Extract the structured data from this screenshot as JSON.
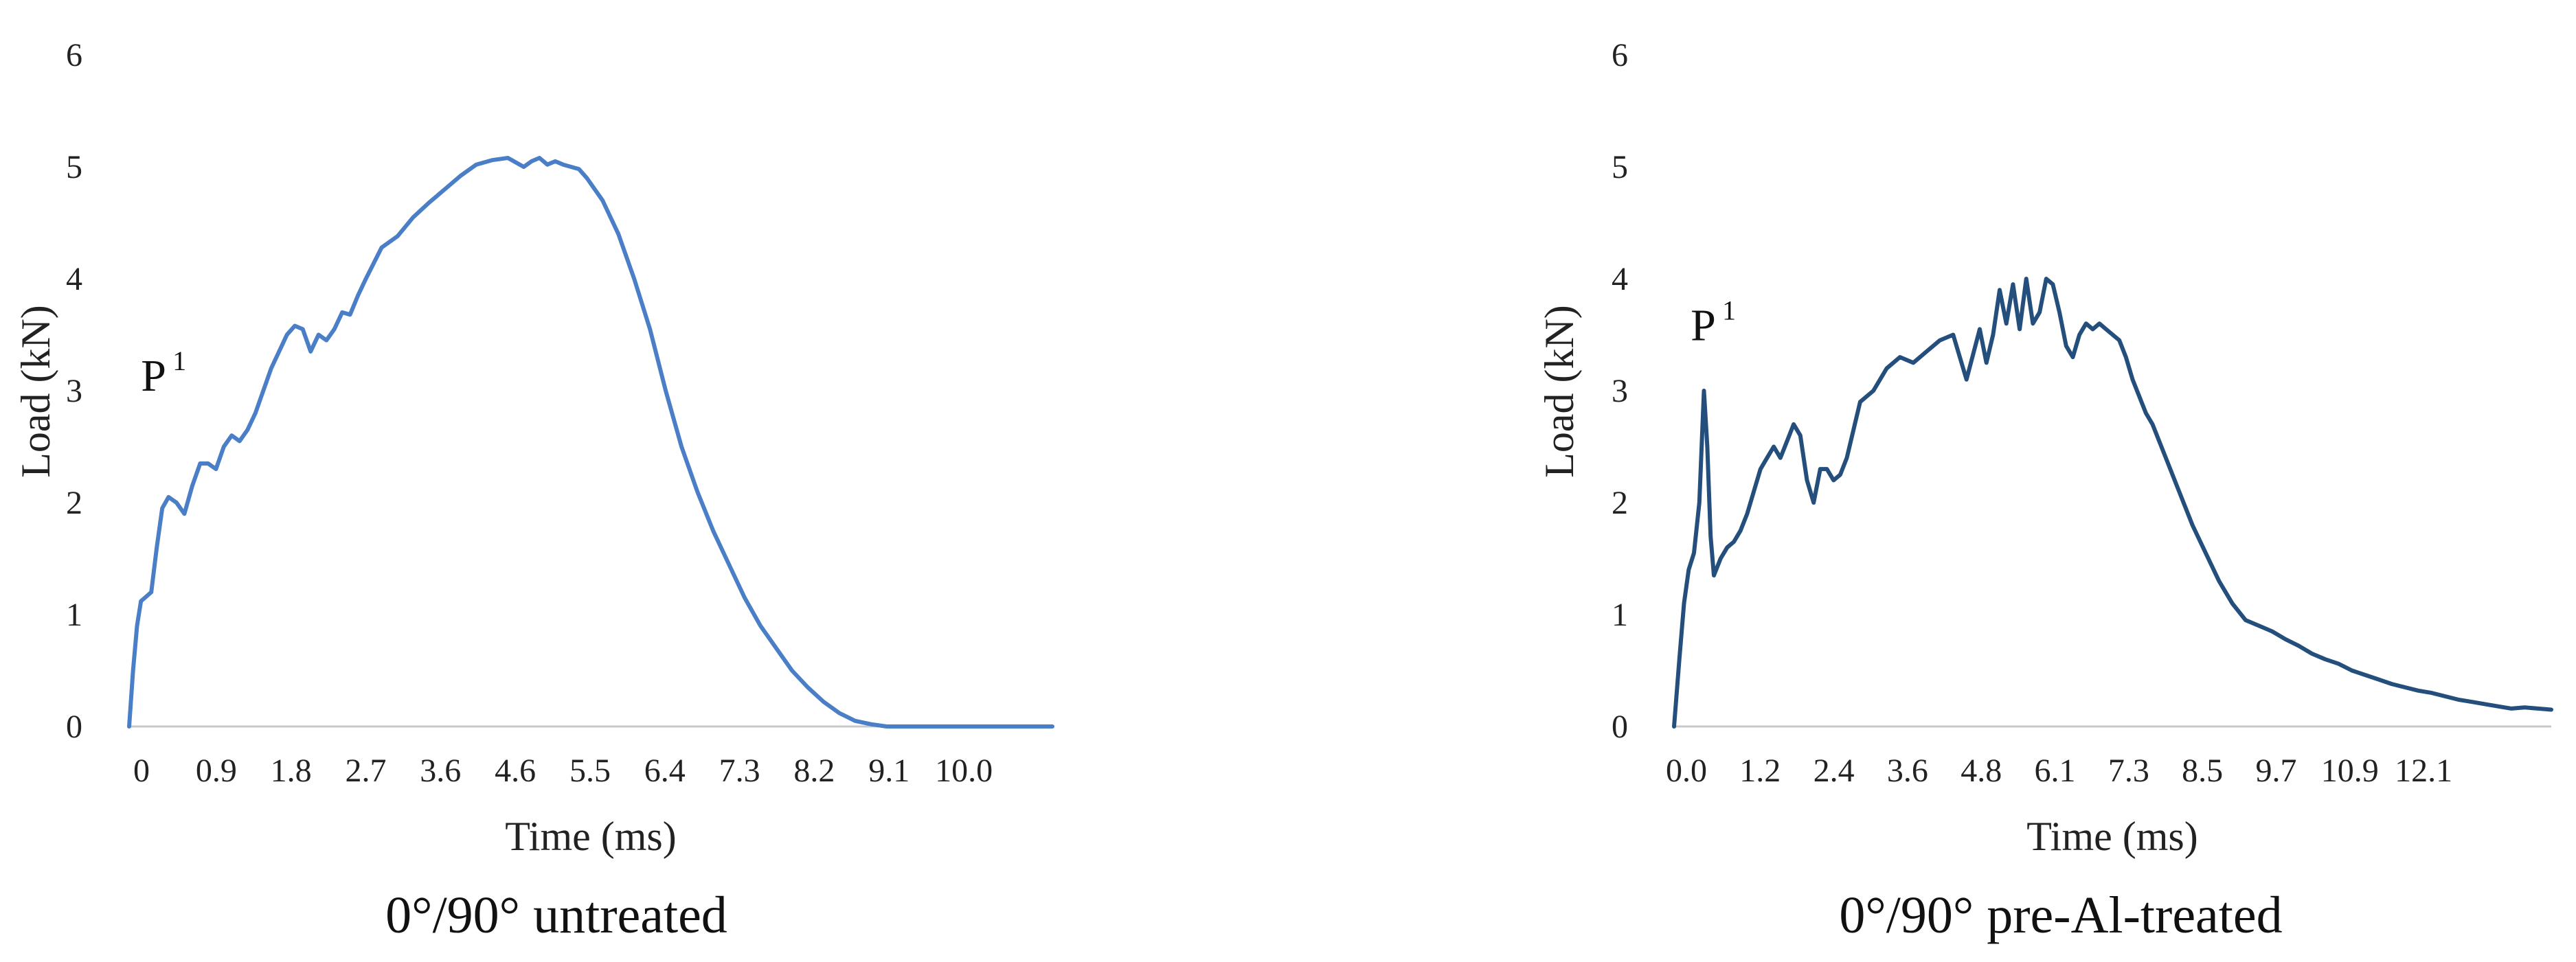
{
  "chart_data": [
    {
      "type": "line",
      "caption": "0°/90° untreated",
      "xlabel": "Time (ms)",
      "ylabel": "Load (kN)",
      "x_tick_labels": [
        "0",
        "0.9",
        "1.8",
        "2.7",
        "3.6",
        "4.6",
        "5.5",
        "6.4",
        "7.3",
        "8.2",
        "9.1",
        "10.0"
      ],
      "y_tick_labels": [
        "0",
        "1",
        "2",
        "3",
        "4",
        "5",
        "6"
      ],
      "xlim": [
        0,
        11.7
      ],
      "ylim": [
        0,
        6
      ],
      "annotation": {
        "text": "P",
        "sup": "1",
        "x": 0.15,
        "y": 3.0
      },
      "color": "#4a7ec6",
      "series": [
        {
          "x": [
            0,
            0.05,
            0.1,
            0.15,
            0.2,
            0.28,
            0.35,
            0.42,
            0.5,
            0.6,
            0.7,
            0.8,
            0.9,
            1.0,
            1.1,
            1.2,
            1.3,
            1.4,
            1.5,
            1.6,
            1.7,
            1.8,
            1.9,
            2.0,
            2.1,
            2.2,
            2.3,
            2.4,
            2.5,
            2.6,
            2.7,
            2.8,
            2.9,
            3.0,
            3.2,
            3.4,
            3.6,
            3.8,
            4.0,
            4.2,
            4.4,
            4.6,
            4.8,
            5.0,
            5.1,
            5.2,
            5.3,
            5.4,
            5.5,
            5.6,
            5.7,
            5.8,
            6.0,
            6.2,
            6.4,
            6.6,
            6.8,
            7.0,
            7.2,
            7.4,
            7.6,
            7.8,
            8.0,
            8.2,
            8.4,
            8.6,
            8.8,
            9.0,
            9.2,
            9.4,
            9.6,
            9.8,
            10.0,
            10.1,
            10.2,
            10.4,
            10.6,
            10.8,
            11.0,
            11.2,
            11.4,
            11.6,
            11.7
          ],
          "y": [
            0,
            0.5,
            0.9,
            1.12,
            1.15,
            1.2,
            1.6,
            1.95,
            2.05,
            2.0,
            1.9,
            2.15,
            2.35,
            2.35,
            2.3,
            2.5,
            2.6,
            2.55,
            2.65,
            2.8,
            3.0,
            3.2,
            3.35,
            3.5,
            3.58,
            3.55,
            3.35,
            3.5,
            3.45,
            3.55,
            3.7,
            3.68,
            3.85,
            4.0,
            4.28,
            4.38,
            4.55,
            4.68,
            4.8,
            4.92,
            5.02,
            5.06,
            5.08,
            5.0,
            5.05,
            5.08,
            5.02,
            5.05,
            5.02,
            5.0,
            4.98,
            4.9,
            4.7,
            4.4,
            4.0,
            3.55,
            3.0,
            2.5,
            2.1,
            1.75,
            1.45,
            1.15,
            0.9,
            0.7,
            0.5,
            0.35,
            0.22,
            0.12,
            0.05,
            0.02,
            0.0,
            0.0,
            0.0,
            0.0,
            0.0,
            0.0,
            0.0,
            0.0,
            0.0,
            0.0,
            0.0,
            0.0,
            0.0
          ]
        }
      ]
    },
    {
      "type": "line",
      "caption": "0°/90° pre-Al-treated",
      "xlabel": "Time (ms)",
      "ylabel": "Load (kN)",
      "x_tick_labels": [
        "0.0",
        "1.2",
        "2.4",
        "3.6",
        "4.8",
        "6.1",
        "7.3",
        "8.5",
        "9.7",
        "10.9",
        "12.1"
      ],
      "y_tick_labels": [
        "0",
        "1",
        "2",
        "3",
        "4",
        "5",
        "6"
      ],
      "xlim": [
        0,
        13.2
      ],
      "ylim": [
        0,
        6
      ],
      "annotation": {
        "text": "P",
        "sup": "1",
        "x": 0.25,
        "y": 3.45
      },
      "color": "#244f7c",
      "series": [
        {
          "x": [
            0,
            0.08,
            0.15,
            0.22,
            0.3,
            0.38,
            0.45,
            0.5,
            0.55,
            0.6,
            0.7,
            0.8,
            0.9,
            1.0,
            1.1,
            1.2,
            1.3,
            1.4,
            1.5,
            1.6,
            1.7,
            1.8,
            1.9,
            2.0,
            2.1,
            2.2,
            2.3,
            2.4,
            2.5,
            2.6,
            2.8,
            3.0,
            3.2,
            3.4,
            3.6,
            3.8,
            4.0,
            4.2,
            4.4,
            4.6,
            4.7,
            4.8,
            4.9,
            5.0,
            5.1,
            5.2,
            5.3,
            5.4,
            5.5,
            5.6,
            5.7,
            5.8,
            5.9,
            6.0,
            6.1,
            6.2,
            6.3,
            6.4,
            6.5,
            6.6,
            6.7,
            6.8,
            6.9,
            7.0,
            7.1,
            7.2,
            7.4,
            7.6,
            7.8,
            8.0,
            8.2,
            8.4,
            8.6,
            8.8,
            9.0,
            9.2,
            9.4,
            9.6,
            9.8,
            10.0,
            10.2,
            10.4,
            10.6,
            10.8,
            11.0,
            11.2,
            11.4,
            11.6,
            11.8,
            12.0,
            12.2,
            12.4,
            12.6,
            12.8,
            13.0,
            13.2
          ],
          "y": [
            0,
            0.6,
            1.1,
            1.4,
            1.55,
            2.0,
            3.0,
            2.5,
            1.7,
            1.35,
            1.5,
            1.6,
            1.65,
            1.75,
            1.9,
            2.1,
            2.3,
            2.4,
            2.5,
            2.4,
            2.55,
            2.7,
            2.6,
            2.2,
            2.0,
            2.3,
            2.3,
            2.2,
            2.25,
            2.4,
            2.9,
            3.0,
            3.2,
            3.3,
            3.25,
            3.35,
            3.45,
            3.5,
            3.1,
            3.55,
            3.25,
            3.5,
            3.9,
            3.6,
            3.95,
            3.55,
            4.0,
            3.6,
            3.7,
            4.0,
            3.95,
            3.7,
            3.4,
            3.3,
            3.5,
            3.6,
            3.55,
            3.6,
            3.55,
            3.5,
            3.45,
            3.3,
            3.1,
            2.95,
            2.8,
            2.7,
            2.4,
            2.1,
            1.8,
            1.55,
            1.3,
            1.1,
            0.95,
            0.9,
            0.85,
            0.78,
            0.72,
            0.65,
            0.6,
            0.56,
            0.5,
            0.46,
            0.42,
            0.38,
            0.35,
            0.32,
            0.3,
            0.27,
            0.24,
            0.22,
            0.2,
            0.18,
            0.16,
            0.17,
            0.16,
            0.15
          ]
        }
      ]
    }
  ]
}
